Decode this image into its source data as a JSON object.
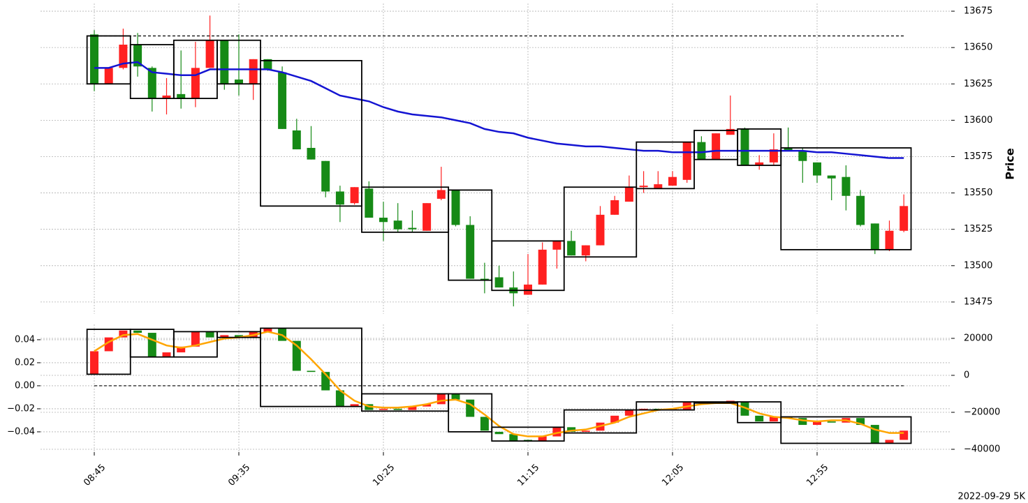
{
  "chart_data": [
    {
      "type": "candlestick",
      "ylabel": "Price",
      "y_axis_position": "right",
      "ylim": [
        13466.8,
        13680.3
      ],
      "yticks": [
        13475,
        13500,
        13525,
        13550,
        13575,
        13600,
        13625,
        13650,
        13675
      ],
      "grid": true,
      "up_color": "#ff2020",
      "down_color": "#168a16",
      "open": [
        13659,
        13625,
        13636,
        13652,
        13636,
        13615,
        13618,
        13615,
        13636,
        13655,
        13628,
        13625,
        13642,
        13633,
        13593,
        13581,
        13572,
        13551,
        13543,
        13553,
        13533,
        13531,
        13526,
        13524,
        13546,
        13552,
        13528,
        13491,
        13492,
        13485,
        13480,
        13487,
        13511,
        13517,
        13507,
        13514,
        13535,
        13544,
        13554,
        13553,
        13555,
        13559,
        13585,
        13573,
        13590,
        13594,
        13569,
        13571,
        13581,
        13579,
        13571,
        13562,
        13561,
        13548,
        13529,
        13511,
        13524
      ],
      "high": [
        13662,
        13636,
        13663,
        13660,
        13637,
        13629,
        13648,
        13654,
        13672,
        13655,
        13659,
        13642,
        13642,
        13637,
        13601,
        13596,
        13572,
        13555,
        13554,
        13558,
        13544,
        13543,
        13538,
        13543,
        13568,
        13552,
        13534,
        13502,
        13500,
        13496,
        13508,
        13516,
        13517,
        13524,
        13514,
        13541,
        13548,
        13562,
        13565,
        13565,
        13565,
        13585,
        13589,
        13591,
        13617,
        13595,
        13576,
        13591,
        13595,
        13581,
        13571,
        13562,
        13569,
        13552,
        13529,
        13531,
        13549
      ],
      "low": [
        13620,
        13625,
        13635,
        13630,
        13606,
        13604,
        13608,
        13609,
        13636,
        13621,
        13617,
        13614,
        13634,
        13594,
        13580,
        13573,
        13547,
        13530,
        13542,
        13533,
        13517,
        13523,
        13523,
        13524,
        13545,
        13527,
        13491,
        13481,
        13485,
        13472,
        13480,
        13487,
        13498,
        13507,
        13503,
        13514,
        13535,
        13544,
        13550,
        13553,
        13555,
        13557,
        13573,
        13573,
        13590,
        13569,
        13566,
        13569,
        13579,
        13557,
        13557,
        13545,
        13538,
        13527,
        13508,
        13510,
        13523
      ],
      "close": [
        13625,
        13636,
        13652,
        13637,
        13615,
        13617,
        13615,
        13636,
        13655,
        13625,
        13625,
        13642,
        13635,
        13594,
        13580,
        13573,
        13551,
        13542,
        13554,
        13533,
        13530,
        13525,
        13525,
        13543,
        13552,
        13528,
        13491,
        13490,
        13485,
        13481,
        13487,
        13511,
        13517,
        13507,
        13514,
        13535,
        13545,
        13554,
        13555,
        13556,
        13561,
        13585,
        13573,
        13591,
        13594,
        13569,
        13571,
        13580,
        13579,
        13572,
        13562,
        13560,
        13548,
        13528,
        13511,
        13524,
        13541
      ],
      "lines": [
        {
          "color": "#1414d2",
          "values": [
            13636,
            13636,
            13639,
            13640,
            13633,
            13632,
            13631,
            13631,
            13635,
            13635,
            13635,
            13635,
            13635,
            13633,
            13630,
            13627,
            13622,
            13617,
            13615,
            13613,
            13609,
            13606,
            13604,
            13603,
            13602,
            13600,
            13598,
            13594,
            13592,
            13591,
            13588,
            13586,
            13584,
            13583,
            13582,
            13582,
            13581,
            13580,
            13579,
            13579,
            13578,
            13578,
            13578,
            13579,
            13579,
            13579,
            13579,
            13579,
            13579,
            13579,
            13578,
            13578,
            13577,
            13576,
            13575,
            13574,
            13574
          ]
        }
      ],
      "hline": 13658,
      "boxes": [
        {
          "start": 0,
          "end": 2,
          "low": 13625,
          "high": 13658
        },
        {
          "start": 3,
          "end": 5,
          "low": 13615,
          "high": 13652
        },
        {
          "start": 6,
          "end": 8,
          "low": 13615,
          "high": 13655
        },
        {
          "start": 9,
          "end": 11,
          "low": 13625,
          "high": 13655
        },
        {
          "start": 12,
          "end": 18,
          "low": 13541,
          "high": 13641
        },
        {
          "start": 19,
          "end": 24,
          "low": 13523,
          "high": 13554
        },
        {
          "start": 25,
          "end": 27,
          "low": 13490,
          "high": 13552
        },
        {
          "start": 28,
          "end": 32,
          "low": 13483,
          "high": 13517
        },
        {
          "start": 33,
          "end": 37,
          "low": 13506,
          "high": 13554
        },
        {
          "start": 38,
          "end": 41,
          "low": 13553,
          "high": 13585
        },
        {
          "start": 42,
          "end": 44,
          "low": 13573,
          "high": 13593
        },
        {
          "start": 45,
          "end": 47,
          "low": 13569,
          "high": 13594
        },
        {
          "start": 48,
          "end": 56,
          "low": 13511,
          "high": 13581
        }
      ]
    },
    {
      "type": "candlestick",
      "y_axis_position": "left",
      "categories": [
        "08:45",
        null,
        null,
        null,
        null,
        null,
        null,
        null,
        null,
        null,
        "09:35",
        null,
        null,
        null,
        null,
        null,
        null,
        null,
        null,
        null,
        "10:25",
        null,
        null,
        null,
        null,
        null,
        null,
        null,
        null,
        null,
        "11:15",
        null,
        null,
        null,
        null,
        null,
        null,
        null,
        null,
        null,
        "12:05",
        null,
        null,
        null,
        null,
        null,
        null,
        null,
        null,
        null,
        "12:55",
        null,
        null,
        null,
        null,
        null,
        null
      ],
      "ylim": [
        -0.0576,
        0.0533
      ],
      "yticks": [
        {
          "value": -0.04,
          "label": "−0.04"
        },
        {
          "value": -0.02,
          "label": "−0.02"
        },
        {
          "value": 0,
          "label": "0.00"
        },
        0.02,
        0.04
      ],
      "y2lim": [
        -41500,
        27550
      ],
      "y2ticks": [
        {
          "value": -40000,
          "label": "−40000"
        },
        {
          "value": -20000,
          "label": "−20000"
        },
        0,
        20000
      ],
      "grid": true,
      "up_color": "#ff2020",
      "down_color": "#168a16",
      "open": [
        0.01,
        0.03,
        0.042,
        0.048,
        0.046,
        0.025,
        0.029,
        0.034,
        0.047,
        0.042,
        0.044,
        0.042,
        0.047,
        0.05,
        0.039,
        0.013,
        0.012,
        -0.004,
        -0.018,
        -0.016,
        -0.021,
        -0.02,
        -0.021,
        -0.018,
        -0.016,
        -0.007,
        -0.012,
        -0.027,
        -0.04,
        -0.042,
        -0.047,
        -0.048,
        -0.044,
        -0.036,
        -0.04,
        -0.039,
        -0.032,
        -0.026,
        -0.021,
        -0.02,
        -0.021,
        -0.021,
        -0.014,
        -0.015,
        -0.014,
        -0.014,
        -0.026,
        -0.031,
        -0.027,
        -0.028,
        -0.034,
        -0.031,
        -0.032,
        -0.028,
        -0.034,
        -0.05,
        -0.047
      ],
      "close": [
        0.03,
        0.042,
        0.048,
        0.046,
        0.025,
        0.029,
        0.034,
        0.047,
        0.042,
        0.044,
        0.042,
        0.047,
        0.05,
        0.039,
        0.013,
        0.012,
        -0.004,
        -0.018,
        -0.016,
        -0.021,
        -0.02,
        -0.021,
        -0.018,
        -0.016,
        -0.007,
        -0.012,
        -0.027,
        -0.039,
        -0.042,
        -0.048,
        -0.048,
        -0.044,
        -0.036,
        -0.04,
        -0.039,
        -0.032,
        -0.026,
        -0.021,
        -0.02,
        -0.021,
        -0.02,
        -0.014,
        -0.015,
        -0.014,
        -0.013,
        -0.026,
        -0.031,
        -0.027,
        -0.028,
        -0.034,
        -0.031,
        -0.032,
        -0.028,
        -0.034,
        -0.05,
        -0.047,
        -0.039
      ],
      "lines": [
        {
          "color": "#ffa500",
          "values": [
            0.03,
            0.038,
            0.044,
            0.045,
            0.04,
            0.035,
            0.033,
            0.035,
            0.038,
            0.041,
            0.042,
            0.044,
            0.047,
            0.044,
            0.035,
            0.023,
            0.01,
            -0.004,
            -0.013,
            -0.018,
            -0.019,
            -0.019,
            -0.018,
            -0.016,
            -0.013,
            -0.012,
            -0.016,
            -0.025,
            -0.035,
            -0.042,
            -0.044,
            -0.044,
            -0.041,
            -0.039,
            -0.038,
            -0.035,
            -0.032,
            -0.027,
            -0.024,
            -0.021,
            -0.02,
            -0.018,
            -0.016,
            -0.015,
            -0.015,
            -0.019,
            -0.024,
            -0.027,
            -0.028,
            -0.03,
            -0.031,
            -0.03,
            -0.03,
            -0.033,
            -0.038,
            -0.041,
            -0.041
          ]
        }
      ],
      "hline": 0,
      "boxes": [
        {
          "start": 0,
          "end": 2,
          "low": 0.01,
          "high": 0.049
        },
        {
          "start": 3,
          "end": 5,
          "low": 0.025,
          "high": 0.049
        },
        {
          "start": 6,
          "end": 8,
          "low": 0.025,
          "high": 0.047
        },
        {
          "start": 9,
          "end": 11,
          "low": 0.042,
          "high": 0.047
        },
        {
          "start": 12,
          "end": 18,
          "low": -0.018,
          "high": 0.05
        },
        {
          "start": 19,
          "end": 24,
          "low": -0.022,
          "high": -0.007
        },
        {
          "start": 25,
          "end": 27,
          "low": -0.04,
          "high": -0.007
        },
        {
          "start": 28,
          "end": 32,
          "low": -0.048,
          "high": -0.036
        },
        {
          "start": 33,
          "end": 37,
          "low": -0.041,
          "high": -0.021
        },
        {
          "start": 38,
          "end": 41,
          "low": -0.021,
          "high": -0.014
        },
        {
          "start": 42,
          "end": 44,
          "low": -0.015,
          "high": -0.014
        },
        {
          "start": 45,
          "end": 47,
          "low": -0.032,
          "high": -0.014
        },
        {
          "start": 48,
          "end": 56,
          "low": -0.05,
          "high": -0.027
        }
      ]
    }
  ],
  "caption": "2022-09-29 5K"
}
